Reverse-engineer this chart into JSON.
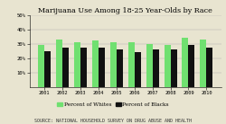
{
  "title": "Marijuana Use Among 18-25 Year-Olds by Race",
  "years": [
    "2001",
    "2002",
    "2003",
    "2004",
    "2005",
    "2006",
    "2007",
    "2008",
    "2009",
    "2010"
  ],
  "whites": [
    29,
    33,
    31,
    32,
    31,
    31,
    30,
    29,
    34,
    33
  ],
  "blacks": [
    25,
    27,
    27,
    27,
    26,
    24,
    26,
    26,
    29,
    27
  ],
  "color_white": "#70e070",
  "color_black": "#111111",
  "ylim": [
    0,
    50
  ],
  "yticks": [
    10,
    20,
    30,
    40,
    50
  ],
  "legend_white": "Percent of Whites",
  "legend_black": "Percent of Blacks",
  "source": "Source: National Household Survey on Drug Abuse and Health",
  "bg_color": "#e8e4d0",
  "title_fontsize": 5.8,
  "tick_fontsize": 4.0,
  "legend_fontsize": 4.2,
  "source_fontsize": 3.6,
  "bar_width": 0.35
}
